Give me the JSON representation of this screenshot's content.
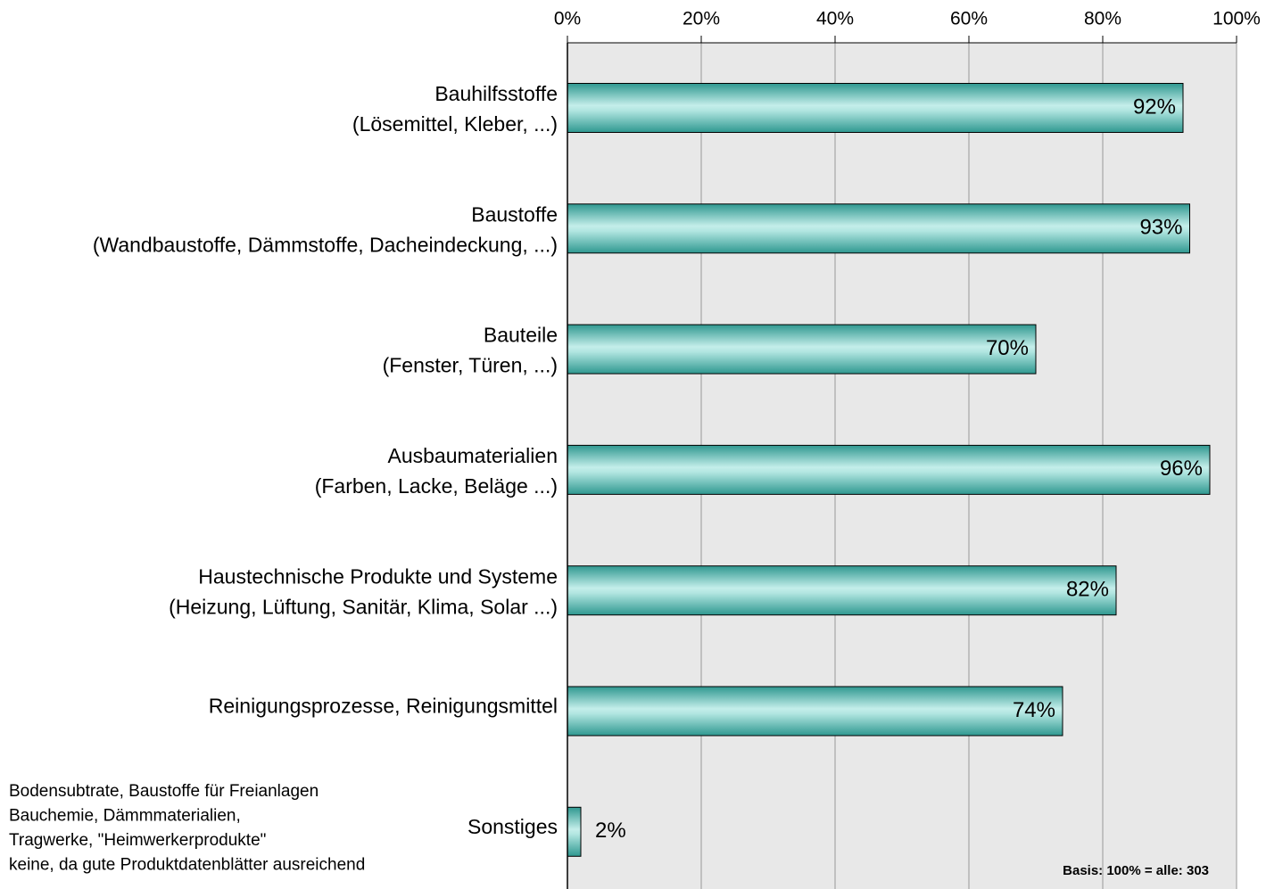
{
  "chart_data": {
    "type": "barh",
    "categories": [
      [
        "Bauhilfsstoffe",
        "(Lösemittel, Kleber, ...)"
      ],
      [
        "Baustoffe",
        "(Wandbaustoffe, Dämmstoffe, Dacheindeckung, ...)"
      ],
      [
        "Bauteile",
        "(Fenster, Türen, ...)"
      ],
      [
        "Ausbaumaterialien",
        "(Farben, Lacke, Beläge ...)"
      ],
      [
        "Haustechnische Produkte und Systeme",
        "(Heizung, Lüftung, Sanitär, Klima, Solar ...)"
      ],
      [
        "Reinigungsprozesse, Reinigungsmittel"
      ],
      [
        "Sonstiges"
      ]
    ],
    "values": [
      92,
      93,
      70,
      96,
      82,
      74,
      2
    ],
    "value_labels": [
      "92%",
      "93%",
      "70%",
      "96%",
      "82%",
      "74%",
      "2%"
    ],
    "color": "#3aa39a",
    "xlim": [
      0,
      100
    ],
    "xticks": [
      {
        "value": 0,
        "label": "0%"
      },
      {
        "value": 20,
        "label": "20%"
      },
      {
        "value": 40,
        "label": "40%"
      },
      {
        "value": 60,
        "label": "60%"
      },
      {
        "value": 80,
        "label": "80%"
      },
      {
        "value": 100,
        "label": "100%"
      }
    ],
    "grid": true,
    "annotations": [
      [
        "Bodensubtrate, Baustoffe für Freianlagen",
        "Bauchemie, Dämmmaterialien,",
        "Tragwerke, \"Heimwerkerprodukte\"",
        "keine, da gute Produktdatenblätter ausreichend"
      ],
      "Basis: 100% = alle: 303"
    ]
  }
}
